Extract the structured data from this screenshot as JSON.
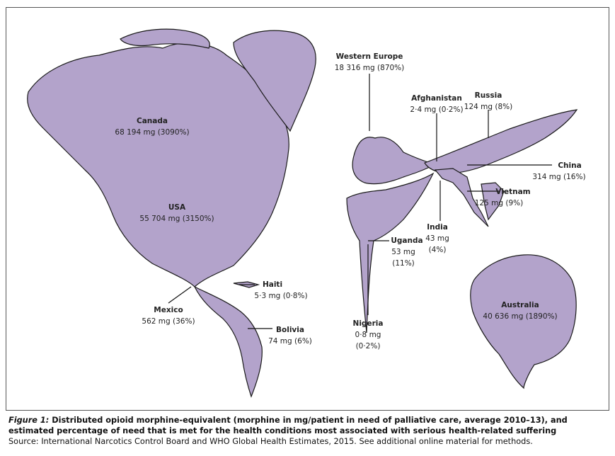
{
  "regions": [
    {
      "name": "Western Europe",
      "lines": [
        "18 316 mg (870%)"
      ]
    },
    {
      "name": "Afghanistan",
      "lines": [
        "2·4 mg (0·2%)"
      ]
    },
    {
      "name": "Russia",
      "lines": [
        "124 mg (8%)"
      ]
    },
    {
      "name": "Canada",
      "lines": [
        "68 194 mg (3090%)"
      ]
    },
    {
      "name": "China",
      "lines": [
        "314 mg (16%)"
      ]
    },
    {
      "name": "Vietnam",
      "lines": [
        "125 mg (9%)"
      ]
    },
    {
      "name": "USA",
      "lines": [
        "55 704 mg (3150%)"
      ]
    },
    {
      "name": "India",
      "lines": [
        "43 mg",
        "(4%)"
      ]
    },
    {
      "name": "Uganda",
      "lines": [
        "53 mg",
        "(11%)"
      ]
    },
    {
      "name": "Haiti",
      "lines": [
        "5·3 mg (0·8%)"
      ]
    },
    {
      "name": "Mexico",
      "lines": [
        "562 mg (36%)"
      ]
    },
    {
      "name": "Australia",
      "lines": [
        "40 636 mg (1890%)"
      ]
    },
    {
      "name": "Nigeria",
      "lines": [
        "0·8 mg",
        "(0·2%)"
      ]
    },
    {
      "name": "Bolivia",
      "lines": [
        "74 mg (6%)"
      ]
    }
  ],
  "caption": {
    "label": "Figure 1:",
    "text": "Distributed opioid morphine-equivalent (morphine in mg/patient in need of palliative care, average 2010–13), and estimated percentage of need that is met for the health conditions most associated with serious health-related suffering",
    "source": "Source: International Narcotics Control Board and WHO Global Health Estimates, 2015. See additional online material for methods."
  }
}
